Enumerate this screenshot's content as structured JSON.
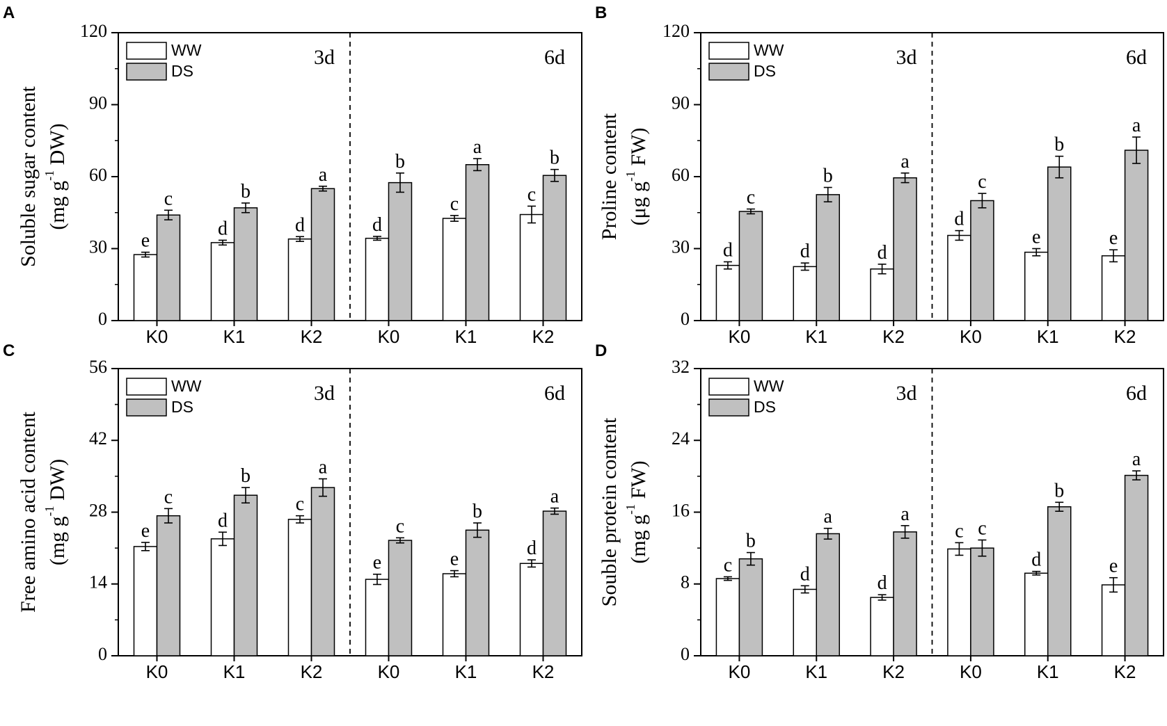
{
  "colors": {
    "ww": "#ffffff",
    "ds": "#c0c0c0",
    "axis": "#000000"
  },
  "legend": {
    "ww": "WW",
    "ds": "DS"
  },
  "categories": [
    "K0",
    "K1",
    "K2",
    "K0",
    "K1",
    "K2"
  ],
  "periods": [
    "3d",
    "6d"
  ],
  "chart_data": [
    {
      "type": "bar",
      "panel": "A",
      "ylabel_main": "Soluble sugar content",
      "ylabel_unit": "(mg g",
      "ylabel_sup": "-1",
      "ylabel_tail": " DW)",
      "ylim": [
        0,
        120
      ],
      "yticks": [
        "0",
        "30",
        "60",
        "90",
        "120"
      ],
      "series": [
        {
          "name": "WW",
          "values": [
            27.5,
            32.5,
            34,
            34.3,
            42.6,
            44.2
          ],
          "errors": [
            1,
            1,
            1,
            0.8,
            1.2,
            3.5
          ],
          "letters": [
            "e",
            "d",
            "d",
            "d",
            "c",
            "c"
          ]
        },
        {
          "name": "DS",
          "values": [
            44,
            47,
            55,
            57.5,
            65,
            60.5
          ],
          "errors": [
            2,
            2,
            1,
            4,
            2.5,
            2.5
          ],
          "letters": [
            "c",
            "b",
            "a",
            "b",
            "a",
            "b"
          ]
        }
      ]
    },
    {
      "type": "bar",
      "panel": "B",
      "ylabel_main": "Proline content",
      "ylabel_unit": "(μg g",
      "ylabel_sup": "-1",
      "ylabel_tail": " FW)",
      "ylim": [
        0,
        120
      ],
      "yticks": [
        "0",
        "30",
        "60",
        "90",
        "120"
      ],
      "series": [
        {
          "name": "WW",
          "values": [
            23,
            22.5,
            21.5,
            35.5,
            28.5,
            27
          ],
          "errors": [
            1.5,
            1.5,
            2,
            2,
            1.5,
            2.5
          ],
          "letters": [
            "d",
            "d",
            "d",
            "d",
            "e",
            "e"
          ]
        },
        {
          "name": "DS",
          "values": [
            45.5,
            52.5,
            59.5,
            50,
            64,
            71
          ],
          "errors": [
            1,
            3,
            2,
            3,
            4.5,
            5.5
          ],
          "letters": [
            "c",
            "b",
            "a",
            "c",
            "b",
            "a"
          ]
        }
      ]
    },
    {
      "type": "bar",
      "panel": "C",
      "ylabel_main": "Free amino acid content",
      "ylabel_unit": "(mg g",
      "ylabel_sup": "-1",
      "ylabel_tail": " DW)",
      "ylim": [
        0,
        56
      ],
      "yticks": [
        "0",
        "14",
        "28",
        "42",
        "56"
      ],
      "series": [
        {
          "name": "WW",
          "values": [
            21.3,
            22.8,
            26.6,
            14.9,
            16,
            18
          ],
          "errors": [
            0.8,
            1.3,
            0.7,
            1,
            0.6,
            0.7
          ],
          "letters": [
            "e",
            "d",
            "c",
            "e",
            "e",
            "d"
          ]
        },
        {
          "name": "DS",
          "values": [
            27.3,
            31.3,
            32.8,
            22.5,
            24.5,
            28.2
          ],
          "errors": [
            1.4,
            1.5,
            1.7,
            0.5,
            1.4,
            0.6
          ],
          "letters": [
            "c",
            "b",
            "a",
            "c",
            "b",
            "a"
          ]
        }
      ]
    },
    {
      "type": "bar",
      "panel": "D",
      "ylabel_main": "Souble protein content",
      "ylabel_unit": "(mg g",
      "ylabel_sup": "-1",
      "ylabel_tail": " FW)",
      "ylim": [
        0,
        32
      ],
      "yticks": [
        "0",
        "8",
        "16",
        "24",
        "32"
      ],
      "series": [
        {
          "name": "WW",
          "values": [
            8.6,
            7.4,
            6.5,
            11.9,
            9.2,
            7.9
          ],
          "errors": [
            0.2,
            0.4,
            0.3,
            0.7,
            0.2,
            0.8
          ],
          "letters": [
            "c",
            "d",
            "d",
            "c",
            "d",
            "e"
          ]
        },
        {
          "name": "DS",
          "values": [
            10.8,
            13.6,
            13.8,
            12,
            16.6,
            20.1
          ],
          "errors": [
            0.7,
            0.6,
            0.7,
            0.9,
            0.5,
            0.5
          ],
          "letters": [
            "b",
            "a",
            "a",
            "c",
            "b",
            "a"
          ]
        }
      ]
    }
  ]
}
